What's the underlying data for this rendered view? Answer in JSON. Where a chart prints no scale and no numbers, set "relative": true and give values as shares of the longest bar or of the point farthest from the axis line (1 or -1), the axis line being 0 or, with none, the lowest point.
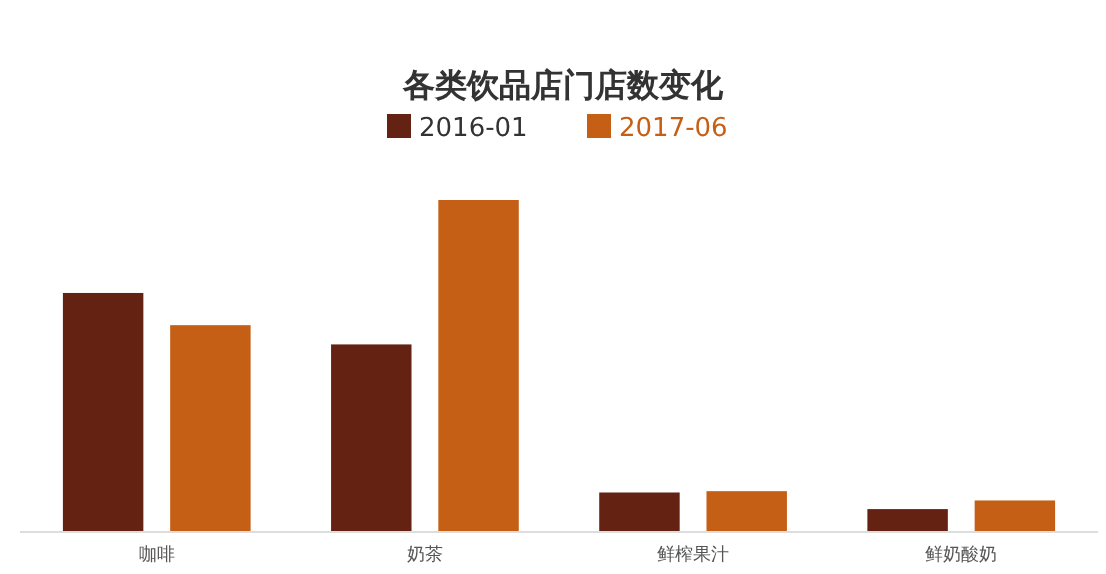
{
  "chart_data": {
    "type": "bar",
    "title": "各类饮品店门店数变化",
    "categories": [
      "咖啡",
      "奶茶",
      "鲜榨果汁",
      "鲜奶酸奶"
    ],
    "relative": true,
    "legend": "top",
    "series": [
      {
        "name": "2016-01",
        "color": "#642212",
        "values": [
          0.72,
          0.565,
          0.119,
          0.069
        ]
      },
      {
        "name": "2017-06",
        "color": "#c65f16",
        "values": [
          0.623,
          1,
          0.123,
          0.095
        ]
      }
    ]
  }
}
